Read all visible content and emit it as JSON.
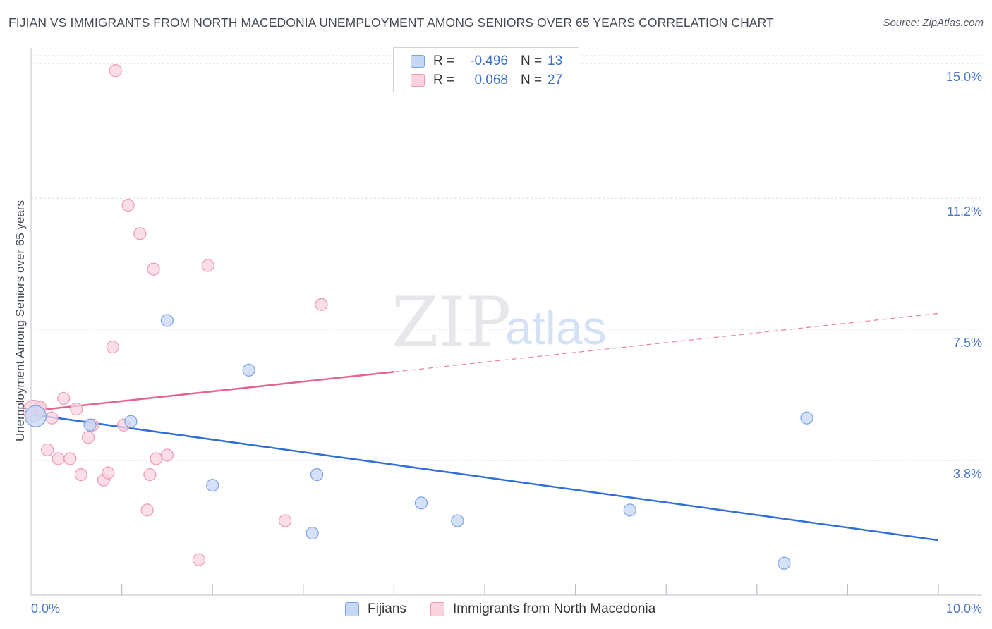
{
  "header": {
    "title": "FIJIAN VS IMMIGRANTS FROM NORTH MACEDONIA UNEMPLOYMENT AMONG SENIORS OVER 65 YEARS CORRELATION CHART",
    "source": "Source: ZipAtlas.com"
  },
  "legend": {
    "rows": [
      {
        "r_label": "R =",
        "r_value": "-0.496",
        "n_label": "N =",
        "n_value": "13"
      },
      {
        "r_label": "R =",
        "r_value": "0.068",
        "n_label": "N =",
        "n_value": "27"
      }
    ]
  },
  "bottom_legend": {
    "fijians": "Fijians",
    "macedonia": "Immigrants from North Macedonia"
  },
  "colors": {
    "fijians_fill": "#c5d7f5",
    "fijians_stroke": "#7aa3e0",
    "fijians_line": "#2f6fd6",
    "macedonia_fill": "#fbd3de",
    "macedonia_stroke": "#ec9ab3",
    "macedonia_line": "#e4638f",
    "grid": "#d9dce2",
    "tick_text": "#4a78c8"
  },
  "watermark": {
    "zip": "ZIP",
    "atlas": "atlas"
  },
  "chart_data": {
    "type": "scatter",
    "title": "FIJIAN VS IMMIGRANTS FROM NORTH MACEDONIA UNEMPLOYMENT AMONG SENIORS OVER 65 YEARS CORRELATION CHART",
    "xlabel": "",
    "ylabel": "Unemployment Among Seniors over 65 years",
    "xlim": [
      0.0,
      10.0
    ],
    "ylim": [
      0.0,
      15.3
    ],
    "x_tick_labels": [
      {
        "value": 0.0,
        "label": "0.0%"
      },
      {
        "value": 10.0,
        "label": "10.0%"
      }
    ],
    "y_ticks": [
      {
        "value": 3.8,
        "label": "3.8%"
      },
      {
        "value": 7.5,
        "label": "7.5%"
      },
      {
        "value": 11.2,
        "label": "11.2%"
      },
      {
        "value": 15.0,
        "label": "15.0%"
      }
    ],
    "grid": true,
    "series": [
      {
        "name": "Fijians",
        "r": -0.496,
        "n": 13,
        "points": [
          {
            "x": 0.05,
            "y": 5.05,
            "size": "large"
          },
          {
            "x": 0.65,
            "y": 4.8
          },
          {
            "x": 1.1,
            "y": 4.9
          },
          {
            "x": 1.5,
            "y": 7.75
          },
          {
            "x": 2.0,
            "y": 3.1
          },
          {
            "x": 2.4,
            "y": 6.35
          },
          {
            "x": 3.1,
            "y": 1.75
          },
          {
            "x": 3.15,
            "y": 3.4
          },
          {
            "x": 4.3,
            "y": 2.6
          },
          {
            "x": 4.7,
            "y": 2.1
          },
          {
            "x": 6.6,
            "y": 2.4
          },
          {
            "x": 8.3,
            "y": 0.9
          },
          {
            "x": 8.55,
            "y": 5.0
          }
        ],
        "trend": {
          "x0": 0.0,
          "y0": 5.1,
          "x1": 10.0,
          "y1": 1.55,
          "dashed_from": null
        }
      },
      {
        "name": "Immigrants from North Macedonia",
        "r": 0.068,
        "n": 27,
        "points": [
          {
            "x": 0.03,
            "y": 5.2,
            "size": "large"
          },
          {
            "x": 0.1,
            "y": 5.3
          },
          {
            "x": 0.18,
            "y": 4.1
          },
          {
            "x": 0.23,
            "y": 5.0
          },
          {
            "x": 0.3,
            "y": 3.85
          },
          {
            "x": 0.36,
            "y": 5.55
          },
          {
            "x": 0.43,
            "y": 3.85
          },
          {
            "x": 0.5,
            "y": 5.25
          },
          {
            "x": 0.55,
            "y": 3.4
          },
          {
            "x": 0.63,
            "y": 4.45
          },
          {
            "x": 0.68,
            "y": 4.8
          },
          {
            "x": 0.8,
            "y": 3.25
          },
          {
            "x": 0.85,
            "y": 3.45
          },
          {
            "x": 0.9,
            "y": 7.0
          },
          {
            "x": 0.93,
            "y": 14.8
          },
          {
            "x": 1.02,
            "y": 4.8
          },
          {
            "x": 1.07,
            "y": 11.0
          },
          {
            "x": 1.2,
            "y": 10.2
          },
          {
            "x": 1.28,
            "y": 2.4
          },
          {
            "x": 1.31,
            "y": 3.4
          },
          {
            "x": 1.35,
            "y": 9.2
          },
          {
            "x": 1.38,
            "y": 3.85
          },
          {
            "x": 1.5,
            "y": 3.95
          },
          {
            "x": 1.85,
            "y": 1.0
          },
          {
            "x": 1.95,
            "y": 9.3
          },
          {
            "x": 2.8,
            "y": 2.1
          },
          {
            "x": 3.2,
            "y": 8.2
          }
        ],
        "trend": {
          "x0": 0.0,
          "y0": 5.2,
          "x1": 10.0,
          "y1": 7.95,
          "dashed_from": 4.0
        }
      }
    ]
  }
}
